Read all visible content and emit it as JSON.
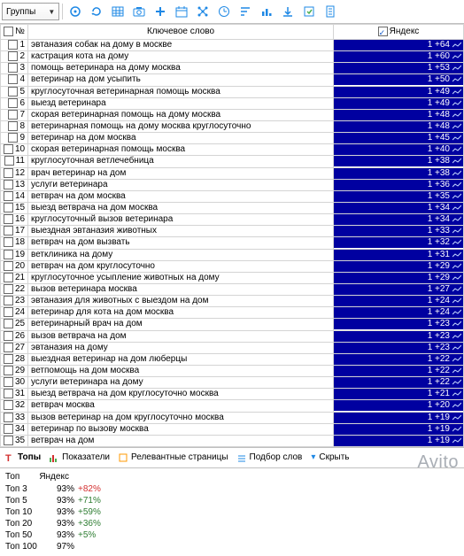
{
  "toolbar": {
    "dropdown_label": "Группы",
    "icon_color": "#1e88e5",
    "icon_green": "#4caf50"
  },
  "columns": {
    "num": "№",
    "keyword": "Ключевое слово",
    "yandex": "Яндекс"
  },
  "rows": [
    {
      "n": 1,
      "kw": "эвтаназия собак на дому в москве",
      "val": "1 +64"
    },
    {
      "n": 2,
      "kw": "кастрация кота на дому",
      "val": "1 +60"
    },
    {
      "n": 3,
      "kw": "помощь ветеринара на дому москва",
      "val": "1 +53"
    },
    {
      "n": 4,
      "kw": "ветеринар на дом усыпить",
      "val": "1 +50"
    },
    {
      "n": 5,
      "kw": "круглосуточная ветеринарная помощь москва",
      "val": "1 +49"
    },
    {
      "n": 6,
      "kw": "выезд ветеринара",
      "val": "1 +49"
    },
    {
      "n": 7,
      "kw": "скорая ветеринарная помощь на дому москва",
      "val": "1 +48"
    },
    {
      "n": 8,
      "kw": "ветеринарная помощь на дому москва круглосуточно",
      "val": "1 +48"
    },
    {
      "n": 9,
      "kw": "ветеринар на дом москва",
      "val": "1 +45"
    },
    {
      "n": 10,
      "kw": "скорая ветеринарная помощь москва",
      "val": "1 +40"
    },
    {
      "n": 11,
      "kw": "круглосуточная ветлечебница",
      "val": "1 +38"
    },
    {
      "n": 12,
      "kw": "врач ветеринар на дом",
      "val": "1 +38"
    },
    {
      "n": 13,
      "kw": "услуги ветеринара",
      "val": "1 +36"
    },
    {
      "n": 14,
      "kw": "ветврач на дом москва",
      "val": "1 +35"
    },
    {
      "n": 15,
      "kw": "выезд ветврача на дом москва",
      "val": "1 +34"
    },
    {
      "n": 16,
      "kw": "круглосуточный вызов ветеринара",
      "val": "1 +34"
    },
    {
      "n": 17,
      "kw": "выездная эвтаназия животных",
      "val": "1 +33"
    },
    {
      "n": 18,
      "kw": "ветврач на дом вызвать",
      "val": "1 +32"
    },
    {
      "n": 19,
      "kw": "ветклиника на дому",
      "val": "1 +31"
    },
    {
      "n": 20,
      "kw": "ветврач на дом круглосуточно",
      "val": "1 +29"
    },
    {
      "n": 21,
      "kw": "круглосуточное усыпление животных на дому",
      "val": "1 +29"
    },
    {
      "n": 22,
      "kw": "вызов ветеринара москва",
      "val": "1 +27"
    },
    {
      "n": 23,
      "kw": "эвтаназия для животных с выездом на дом",
      "val": "1 +24"
    },
    {
      "n": 24,
      "kw": "ветеринар для кота на дом москва",
      "val": "1 +24"
    },
    {
      "n": 25,
      "kw": "ветеринарный врач на дом",
      "val": "1 +23"
    },
    {
      "n": 26,
      "kw": "вызов ветврача на дом",
      "val": "1 +23"
    },
    {
      "n": 27,
      "kw": "эвтаназия на дому",
      "val": "1 +23"
    },
    {
      "n": 28,
      "kw": "выездная ветеринар на дом люберцы",
      "val": "1 +22"
    },
    {
      "n": 29,
      "kw": "ветпомощь на дом москва",
      "val": "1 +22"
    },
    {
      "n": 30,
      "kw": "услуги ветеринара на дому",
      "val": "1 +22"
    },
    {
      "n": 31,
      "kw": "выезд ветврача на дом круглосуточно москва",
      "val": "1 +21"
    },
    {
      "n": 32,
      "kw": "ветврач москва",
      "val": "1 +20"
    },
    {
      "n": 33,
      "kw": "вызов ветеринар на дом круглосуточно москва",
      "val": "1 +19"
    },
    {
      "n": 34,
      "kw": "ветеринар по вызову москва",
      "val": "1 +19"
    },
    {
      "n": 35,
      "kw": "ветврач на дом",
      "val": "1 +19"
    }
  ],
  "tabs": {
    "tops": "Топы",
    "indicators": "Показатели",
    "relevant": "Релевантные страницы",
    "selection": "Подбор слов",
    "hide": "Скрыть"
  },
  "stats": {
    "head_top": "Топ",
    "head_yandex": "Яндекс",
    "rows": [
      {
        "label": "Топ 3",
        "pct": "93%",
        "delta": "+82%",
        "color": "#d32f2f"
      },
      {
        "label": "Топ 5",
        "pct": "93%",
        "delta": "+71%",
        "color": "#2e7d32"
      },
      {
        "label": "Топ 10",
        "pct": "93%",
        "delta": "+59%",
        "color": "#2e7d32"
      },
      {
        "label": "Топ 20",
        "pct": "93%",
        "delta": "+36%",
        "color": "#2e7d32"
      },
      {
        "label": "Топ 50",
        "pct": "93%",
        "delta": "+5%",
        "color": "#2e7d32"
      },
      {
        "label": "Топ 100",
        "pct": "97%",
        "delta": "",
        "color": "#2e7d32"
      }
    ]
  },
  "watermark": "Avito"
}
